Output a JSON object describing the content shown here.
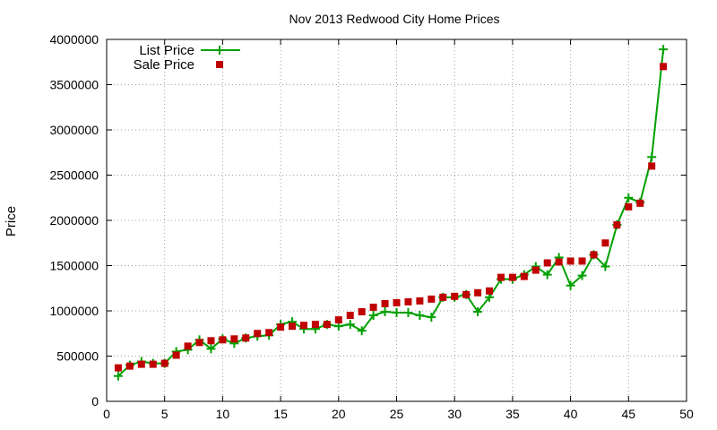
{
  "chart_data": {
    "type": "line",
    "title": "Nov 2013 Redwood City Home Prices",
    "xlabel": "",
    "ylabel": "Price",
    "xlim": [
      0,
      50
    ],
    "ylim": [
      0,
      4000000
    ],
    "xticks": [
      0,
      5,
      10,
      15,
      20,
      25,
      30,
      35,
      40,
      45,
      50
    ],
    "yticks": [
      0,
      500000,
      1000000,
      1500000,
      2000000,
      2500000,
      3000000,
      3500000,
      4000000
    ],
    "grid": true,
    "legend": "top-left",
    "x": [
      1,
      2,
      3,
      4,
      5,
      6,
      7,
      8,
      9,
      10,
      11,
      12,
      13,
      14,
      15,
      16,
      17,
      18,
      19,
      20,
      21,
      22,
      23,
      24,
      25,
      26,
      27,
      28,
      29,
      30,
      31,
      32,
      33,
      34,
      35,
      36,
      37,
      38,
      39,
      40,
      41,
      42,
      43,
      44,
      45,
      46,
      47,
      48
    ],
    "series": [
      {
        "name": "List Price",
        "style": "linespoints",
        "color": "#00a000",
        "values": [
          280000,
          400000,
          440000,
          420000,
          420000,
          550000,
          570000,
          680000,
          580000,
          690000,
          640000,
          700000,
          720000,
          730000,
          850000,
          880000,
          800000,
          800000,
          850000,
          830000,
          850000,
          780000,
          950000,
          990000,
          980000,
          980000,
          950000,
          930000,
          1150000,
          1150000,
          1180000,
          990000,
          1150000,
          1350000,
          1350000,
          1400000,
          1490000,
          1400000,
          1590000,
          1280000,
          1390000,
          1620000,
          1490000,
          1950000,
          2250000,
          2200000,
          2700000,
          3890000
        ]
      },
      {
        "name": "Sale Price",
        "style": "points",
        "color": "#c00000",
        "values": [
          370000,
          390000,
          410000,
          410000,
          420000,
          510000,
          610000,
          650000,
          670000,
          680000,
          690000,
          700000,
          750000,
          760000,
          820000,
          830000,
          840000,
          850000,
          850000,
          900000,
          950000,
          990000,
          1040000,
          1080000,
          1090000,
          1100000,
          1110000,
          1130000,
          1150000,
          1160000,
          1180000,
          1200000,
          1220000,
          1370000,
          1370000,
          1380000,
          1450000,
          1530000,
          1540000,
          1550000,
          1550000,
          1620000,
          1750000,
          1950000,
          2150000,
          2190000,
          2600000,
          3700000
        ]
      }
    ]
  }
}
